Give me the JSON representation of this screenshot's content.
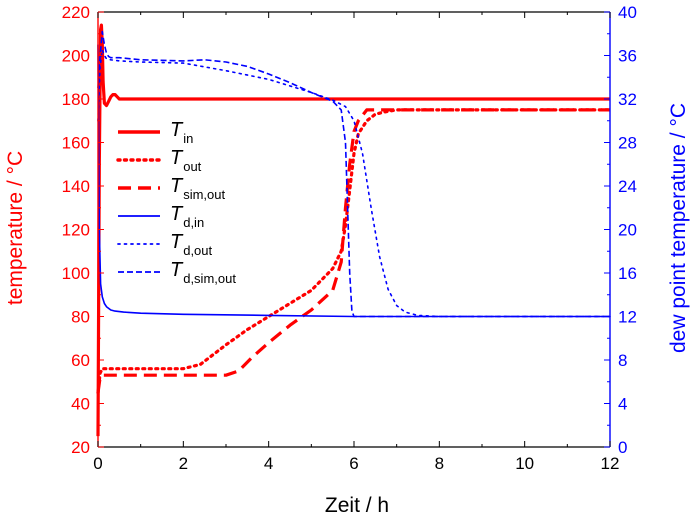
{
  "chart_data": {
    "type": "line",
    "xlabel": "Zeit / h",
    "ylabel_left": "temperature / °C",
    "ylabel_right": "dew point temperature / °C",
    "xlim": [
      0,
      12
    ],
    "ylim_left": [
      20,
      220
    ],
    "ylim_right": [
      0,
      40
    ],
    "x_ticks": [
      0,
      2,
      4,
      6,
      8,
      10,
      12
    ],
    "y_ticks_left": [
      20,
      40,
      60,
      80,
      100,
      120,
      140,
      160,
      180,
      200,
      220
    ],
    "y_ticks_right": [
      0,
      4,
      8,
      12,
      16,
      20,
      24,
      28,
      32,
      36,
      40
    ],
    "grid": false,
    "legend_position": "center-left",
    "colors": {
      "left_axis": "#ff0000",
      "right_axis": "#0000ff",
      "frame": "#000000"
    },
    "series": [
      {
        "name": "T",
        "subscript": "in",
        "axis": "left",
        "color": "#ff0000",
        "style": "solid",
        "x": [
          0,
          0.03,
          0.06,
          0.08,
          0.1,
          0.12,
          0.15,
          0.2,
          0.25,
          0.3,
          0.35,
          0.4,
          0.45,
          0.5,
          0.6,
          0.8,
          1,
          2,
          4,
          6,
          8,
          10,
          12
        ],
        "y": [
          25,
          150,
          212,
          214,
          205,
          188,
          178,
          177,
          179,
          181,
          182,
          182,
          181,
          180,
          180,
          180,
          180,
          180,
          180,
          180,
          180,
          180,
          180
        ]
      },
      {
        "name": "T",
        "subscript": "out",
        "axis": "left",
        "color": "#ff0000",
        "style": "dotted",
        "x": [
          0,
          0.05,
          0.1,
          0.3,
          1,
          2,
          2.4,
          3,
          3.5,
          4,
          4.5,
          5,
          5.5,
          5.7,
          5.8,
          5.9,
          6,
          6.1,
          6.3,
          6.5,
          6.7,
          7,
          8,
          10,
          12
        ],
        "y": [
          45,
          54,
          56,
          56,
          56,
          56,
          58,
          67,
          74,
          80,
          86,
          92,
          102,
          110,
          122,
          138,
          155,
          164,
          170,
          173,
          174,
          175,
          175,
          175,
          175
        ]
      },
      {
        "name": "T",
        "subscript": "sim,out",
        "axis": "left",
        "color": "#ff0000",
        "style": "dashed",
        "x": [
          0,
          0.05,
          0.1,
          0.5,
          1,
          2,
          3,
          3.3,
          3.6,
          4,
          4.5,
          5,
          5.5,
          5.7,
          5.8,
          5.9,
          6,
          6.1,
          6.3,
          7,
          8,
          10,
          12
        ],
        "y": [
          45,
          52,
          53,
          53,
          53,
          53,
          53,
          55,
          61,
          68,
          76,
          83,
          92,
          105,
          130,
          150,
          165,
          170,
          175,
          175,
          175,
          175,
          175
        ]
      },
      {
        "name": "T",
        "subscript": "d,in",
        "axis": "right",
        "color": "#0000ff",
        "style": "solid",
        "x": [
          0,
          0.03,
          0.06,
          0.1,
          0.15,
          0.2,
          0.3,
          0.4,
          0.6,
          1,
          2,
          4,
          6,
          8,
          10,
          12
        ],
        "y": [
          37,
          20,
          15,
          13.8,
          13.2,
          12.9,
          12.6,
          12.5,
          12.4,
          12.3,
          12.2,
          12.1,
          12,
          12,
          12,
          12
        ]
      },
      {
        "name": "T",
        "subscript": "d,out",
        "axis": "right",
        "color": "#0000ff",
        "style": "dotted",
        "x": [
          0,
          0.05,
          0.1,
          0.15,
          0.2,
          0.3,
          0.5,
          1,
          2,
          3,
          4,
          5,
          5.5,
          5.8,
          6,
          6.2,
          6.4,
          6.6,
          6.8,
          7,
          7.2,
          7.5,
          8,
          10,
          12
        ],
        "y": [
          30,
          35,
          36.5,
          36,
          35.7,
          35.6,
          35.5,
          35.4,
          35.3,
          34.6,
          33.8,
          32.6,
          31.9,
          31.3,
          30,
          27,
          22,
          17.5,
          14.5,
          13,
          12.4,
          12.1,
          12,
          12,
          12
        ]
      },
      {
        "name": "T",
        "subscript": "d,sim,out",
        "axis": "right",
        "color": "#0000ff",
        "style": "dashed",
        "x": [
          0,
          0.05,
          0.1,
          0.15,
          0.2,
          0.25,
          0.3,
          0.5,
          1,
          2,
          2.5,
          3,
          3.5,
          4,
          4.5,
          5,
          5.5,
          5.7,
          5.8,
          5.85,
          5.9,
          5.95,
          6,
          6.1,
          8,
          10,
          12
        ],
        "y": [
          33,
          36,
          38.2,
          37,
          36.2,
          35.9,
          35.8,
          35.8,
          35.6,
          35.5,
          35.6,
          35.4,
          35,
          34.3,
          33.5,
          32.6,
          31.8,
          31,
          28,
          22,
          16,
          12.5,
          12,
          12,
          12,
          12,
          12
        ]
      }
    ]
  }
}
